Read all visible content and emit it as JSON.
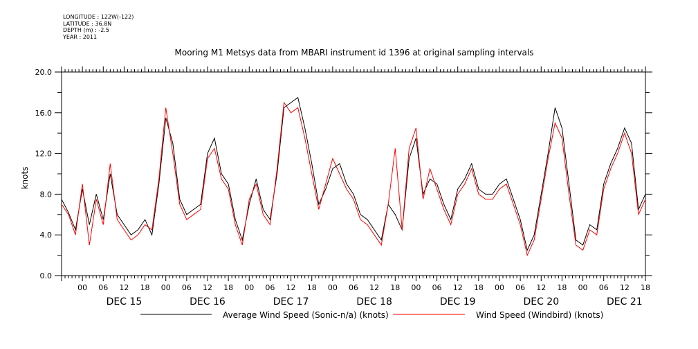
{
  "metadata": {
    "longitude": "LONGITUDE : 122W(-122)",
    "latitude": "LATITUDE : 36.8N",
    "depth": "DEPTH (m) : -2.5",
    "year": "YEAR : 2011"
  },
  "chart_data": {
    "type": "line",
    "title": "Mooring M1 Metsys data from MBARI instrument id 1396 at original sampling intervals",
    "ylabel": "knots",
    "xlabel": "",
    "ylim": [
      0,
      20
    ],
    "yticks": [
      "0.0",
      "4.0",
      "8.0",
      "12.0",
      "16.0",
      "20.0"
    ],
    "xlim_hours": [
      -6,
      162
    ],
    "hour_tick_labels": [
      "00",
      "06",
      "12",
      "18"
    ],
    "day_labels": [
      "DEC 15",
      "DEC 16",
      "DEC 17",
      "DEC 18",
      "DEC 19",
      "DEC 20",
      "DEC 21"
    ],
    "grid": false,
    "legend_placement": "bottom",
    "x_units": "hours since 2011-12-15 00:00",
    "series": [
      {
        "name": "Average Wind Speed (Sonic-n/a) (knots)",
        "color": "#000000",
        "x": [
          -6,
          -4,
          -2,
          0,
          2,
          4,
          6,
          8,
          10,
          12,
          14,
          16,
          18,
          20,
          22,
          24,
          26,
          28,
          30,
          32,
          34,
          36,
          38,
          40,
          42,
          44,
          46,
          48,
          50,
          52,
          54,
          56,
          58,
          60,
          62,
          64,
          66,
          68,
          70,
          72,
          74,
          76,
          78,
          80,
          82,
          84,
          86,
          88,
          90,
          92,
          94,
          96,
          98,
          100,
          102,
          104,
          106,
          108,
          110,
          112,
          114,
          116,
          118,
          120,
          122,
          124,
          126,
          128,
          130,
          132,
          134,
          136,
          138,
          140,
          142,
          144,
          146,
          148,
          150,
          152,
          154,
          156,
          158,
          160,
          162
        ],
        "values": [
          7.5,
          6.2,
          4.5,
          8.5,
          5.0,
          8.0,
          5.5,
          10.0,
          6.0,
          5.0,
          4.0,
          4.5,
          5.5,
          4.0,
          9.0,
          15.5,
          13.0,
          7.5,
          6.0,
          6.5,
          7.0,
          12.0,
          13.5,
          10.0,
          9.0,
          5.5,
          3.5,
          7.0,
          9.5,
          6.5,
          5.5,
          10.0,
          16.5,
          17.0,
          17.5,
          14.5,
          11.0,
          7.0,
          8.5,
          10.5,
          11.0,
          9.0,
          8.0,
          6.0,
          5.5,
          4.5,
          3.5,
          7.0,
          6.0,
          4.5,
          11.5,
          13.5,
          8.0,
          9.5,
          9.0,
          7.0,
          5.5,
          8.5,
          9.5,
          11.0,
          8.5,
          8.0,
          8.0,
          9.0,
          9.5,
          7.5,
          5.5,
          2.5,
          4.0,
          8.0,
          12.0,
          16.5,
          14.5,
          9.0,
          3.5,
          3.0,
          5.0,
          4.5,
          9.0,
          11.0,
          12.5,
          14.5,
          13.0,
          6.5,
          8.0
        ]
      },
      {
        "name": "Wind Speed (Windbird) (knots)",
        "color": "#ff0000",
        "x": [
          -6,
          -4,
          -2,
          0,
          2,
          4,
          6,
          8,
          10,
          12,
          14,
          16,
          18,
          20,
          22,
          24,
          26,
          28,
          30,
          32,
          34,
          36,
          38,
          40,
          42,
          44,
          46,
          48,
          50,
          52,
          54,
          56,
          58,
          60,
          62,
          64,
          66,
          68,
          70,
          72,
          74,
          76,
          78,
          80,
          82,
          84,
          86,
          88,
          90,
          92,
          94,
          96,
          98,
          100,
          102,
          104,
          106,
          108,
          110,
          112,
          114,
          116,
          118,
          120,
          122,
          124,
          126,
          128,
          130,
          132,
          134,
          136,
          138,
          140,
          142,
          144,
          146,
          148,
          150,
          152,
          154,
          156,
          158,
          160,
          162
        ],
        "values": [
          7.0,
          6.0,
          4.0,
          9.0,
          3.0,
          7.5,
          5.0,
          11.0,
          5.5,
          4.5,
          3.5,
          4.0,
          5.0,
          4.5,
          9.5,
          16.5,
          12.0,
          7.0,
          5.5,
          6.0,
          6.5,
          11.5,
          12.5,
          9.5,
          8.5,
          5.0,
          3.0,
          7.5,
          9.0,
          6.0,
          5.0,
          10.5,
          17.0,
          16.0,
          16.5,
          13.5,
          10.0,
          6.5,
          9.0,
          11.5,
          10.0,
          8.5,
          7.5,
          5.5,
          5.0,
          4.0,
          3.0,
          7.0,
          12.5,
          4.5,
          12.5,
          14.5,
          7.5,
          10.5,
          8.5,
          6.5,
          5.0,
          8.0,
          9.0,
          10.5,
          8.0,
          7.5,
          7.5,
          8.5,
          9.0,
          7.0,
          5.0,
          2.0,
          3.5,
          7.5,
          11.5,
          15.0,
          13.5,
          8.0,
          3.0,
          2.5,
          4.5,
          4.0,
          8.5,
          10.5,
          12.0,
          14.0,
          12.0,
          6.0,
          7.5
        ]
      }
    ]
  }
}
